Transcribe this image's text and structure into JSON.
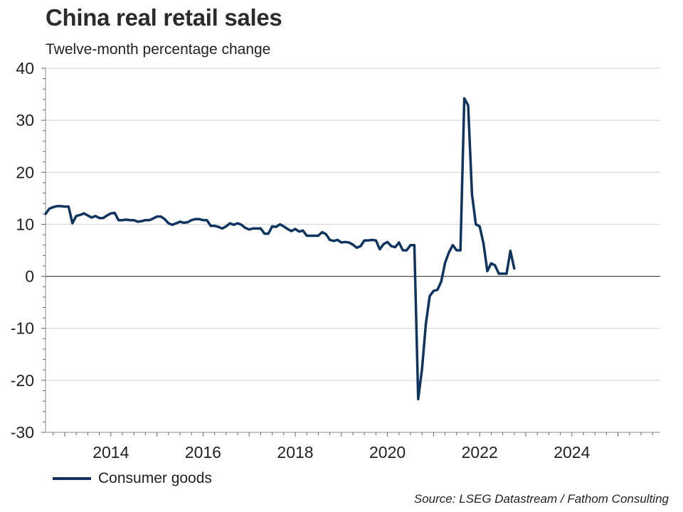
{
  "chart_data": {
    "type": "line",
    "title": "China real retail sales",
    "subtitle": "Twelve-month percentage change",
    "xlabel": "",
    "ylabel": "",
    "ylim": [
      -30,
      40
    ],
    "xlim": [
      "2012-08",
      "2025-12"
    ],
    "y_ticks": [
      "40",
      "30",
      "20",
      "10",
      "0",
      "-10",
      "-20",
      "-30"
    ],
    "x_ticks": [
      "2014",
      "2016",
      "2018",
      "2020",
      "2022",
      "2024"
    ],
    "grid": "horizontal",
    "legend_position": "bottom-left",
    "series": [
      {
        "name": "Consumer goods",
        "color": "#0f3460",
        "points": [
          [
            "2012-08",
            12.0
          ],
          [
            "2012-09",
            13.0
          ],
          [
            "2012-10",
            13.3
          ],
          [
            "2012-11",
            13.5
          ],
          [
            "2012-12",
            13.5
          ],
          [
            "2013-01",
            13.4
          ],
          [
            "2013-02",
            13.4
          ],
          [
            "2013-03",
            10.2
          ],
          [
            "2013-04",
            11.6
          ],
          [
            "2013-05",
            11.8
          ],
          [
            "2013-06",
            12.1
          ],
          [
            "2013-07",
            11.7
          ],
          [
            "2013-08",
            11.3
          ],
          [
            "2013-09",
            11.6
          ],
          [
            "2013-10",
            11.2
          ],
          [
            "2013-11",
            11.2
          ],
          [
            "2013-12",
            11.7
          ],
          [
            "2014-01",
            12.1
          ],
          [
            "2014-02",
            12.2
          ],
          [
            "2014-03",
            10.8
          ],
          [
            "2014-04",
            10.8
          ],
          [
            "2014-05",
            10.9
          ],
          [
            "2014-06",
            10.8
          ],
          [
            "2014-07",
            10.8
          ],
          [
            "2014-08",
            10.5
          ],
          [
            "2014-09",
            10.6
          ],
          [
            "2014-10",
            10.8
          ],
          [
            "2014-11",
            10.8
          ],
          [
            "2014-12",
            11.1
          ],
          [
            "2015-01",
            11.5
          ],
          [
            "2015-02",
            11.5
          ],
          [
            "2015-03",
            11.0
          ],
          [
            "2015-04",
            10.2
          ],
          [
            "2015-05",
            9.9
          ],
          [
            "2015-06",
            10.2
          ],
          [
            "2015-07",
            10.5
          ],
          [
            "2015-08",
            10.3
          ],
          [
            "2015-09",
            10.4
          ],
          [
            "2015-10",
            10.8
          ],
          [
            "2015-11",
            11.0
          ],
          [
            "2015-12",
            11.0
          ],
          [
            "2016-01",
            10.8
          ],
          [
            "2016-02",
            10.8
          ],
          [
            "2016-03",
            9.7
          ],
          [
            "2016-04",
            9.7
          ],
          [
            "2016-05",
            9.5
          ],
          [
            "2016-06",
            9.2
          ],
          [
            "2016-07",
            9.6
          ],
          [
            "2016-08",
            10.2
          ],
          [
            "2016-09",
            9.9
          ],
          [
            "2016-10",
            10.2
          ],
          [
            "2016-11",
            9.9
          ],
          [
            "2016-12",
            9.3
          ],
          [
            "2017-01",
            9.0
          ],
          [
            "2017-02",
            9.2
          ],
          [
            "2017-03",
            9.2
          ],
          [
            "2017-04",
            9.2
          ],
          [
            "2017-05",
            8.2
          ],
          [
            "2017-06",
            8.2
          ],
          [
            "2017-07",
            9.6
          ],
          [
            "2017-08",
            9.5
          ],
          [
            "2017-09",
            10.0
          ],
          [
            "2017-10",
            9.6
          ],
          [
            "2017-11",
            9.1
          ],
          [
            "2017-12",
            8.7
          ],
          [
            "2018-01",
            9.1
          ],
          [
            "2018-02",
            8.6
          ],
          [
            "2018-03",
            8.8
          ],
          [
            "2018-04",
            7.8
          ],
          [
            "2018-05",
            7.8
          ],
          [
            "2018-06",
            7.8
          ],
          [
            "2018-07",
            7.8
          ],
          [
            "2018-08",
            8.5
          ],
          [
            "2018-09",
            8.1
          ],
          [
            "2018-10",
            7.0
          ],
          [
            "2018-11",
            6.8
          ],
          [
            "2018-12",
            7.0
          ],
          [
            "2019-01",
            6.5
          ],
          [
            "2019-02",
            6.6
          ],
          [
            "2019-03",
            6.5
          ],
          [
            "2019-04",
            6.1
          ],
          [
            "2019-05",
            5.5
          ],
          [
            "2019-06",
            5.8
          ],
          [
            "2019-07",
            6.9
          ],
          [
            "2019-08",
            6.9
          ],
          [
            "2019-09",
            7.0
          ],
          [
            "2019-10",
            6.9
          ],
          [
            "2019-11",
            5.2
          ],
          [
            "2019-12",
            6.2
          ],
          [
            "2020-01",
            6.6
          ],
          [
            "2020-02",
            5.8
          ],
          [
            "2020-03",
            5.6
          ],
          [
            "2020-04",
            6.5
          ],
          [
            "2020-05",
            5.0
          ],
          [
            "2020-06",
            5.0
          ],
          [
            "2020-07",
            6.0
          ],
          [
            "2020-08",
            6.0
          ],
          [
            "2020-09",
            -23.6
          ],
          [
            "2020-10",
            -17.8
          ],
          [
            "2020-11",
            -9.1
          ],
          [
            "2020-12",
            -3.8
          ],
          [
            "2021-01",
            -2.8
          ],
          [
            "2021-02",
            -2.6
          ],
          [
            "2021-03",
            -1.0
          ],
          [
            "2021-04",
            2.6
          ],
          [
            "2021-05",
            4.6
          ],
          [
            "2021-06",
            6.0
          ],
          [
            "2021-07",
            5.0
          ],
          [
            "2021-08",
            5.0
          ],
          [
            "2021-09",
            34.2
          ],
          [
            "2021-10",
            32.9
          ],
          [
            "2021-11",
            15.8
          ],
          [
            "2021-12",
            10.0
          ],
          [
            "2022-01",
            9.6
          ],
          [
            "2022-02",
            6.3
          ],
          [
            "2022-03",
            1.0
          ],
          [
            "2022-04",
            2.5
          ],
          [
            "2022-05",
            2.1
          ],
          [
            "2022-06",
            0.5
          ],
          [
            "2022-07",
            0.5
          ],
          [
            "2022-08",
            0.5
          ],
          [
            "2022-09",
            4.9
          ],
          [
            "2022-10",
            1.5
          ]
        ]
      }
    ]
  },
  "legend": {
    "label": "Consumer goods"
  },
  "source": "Source: LSEG Datastream / Fathom Consulting"
}
